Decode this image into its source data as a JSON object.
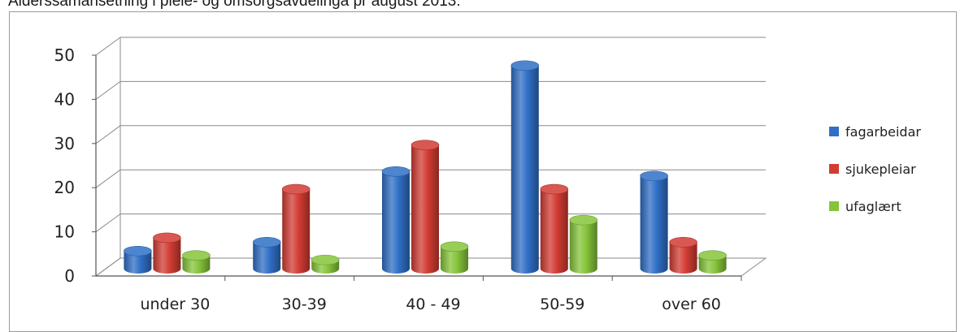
{
  "caption": "Alderssamansetning i pleie- og omsorgsavdelinga pr august 2013:",
  "chart_data": {
    "type": "bar",
    "title": "",
    "xlabel": "",
    "ylabel": "",
    "ylim": [
      0,
      50
    ],
    "yticks": [
      0,
      10,
      20,
      30,
      40,
      50
    ],
    "grid": true,
    "legend_position": "right",
    "categories": [
      "under 30",
      "30-39",
      "40 - 49",
      "50-59",
      "over 60"
    ],
    "series": [
      {
        "name": "fagarbeidar",
        "color": "#2f6fc6",
        "values": [
          4,
          6,
          22,
          46,
          21
        ]
      },
      {
        "name": "sjukepleiar",
        "color": "#d23c33",
        "values": [
          7,
          18,
          28,
          18,
          6
        ]
      },
      {
        "name": "ufaglært",
        "color": "#86c43a",
        "values": [
          3,
          2,
          5,
          11,
          3
        ]
      }
    ]
  }
}
